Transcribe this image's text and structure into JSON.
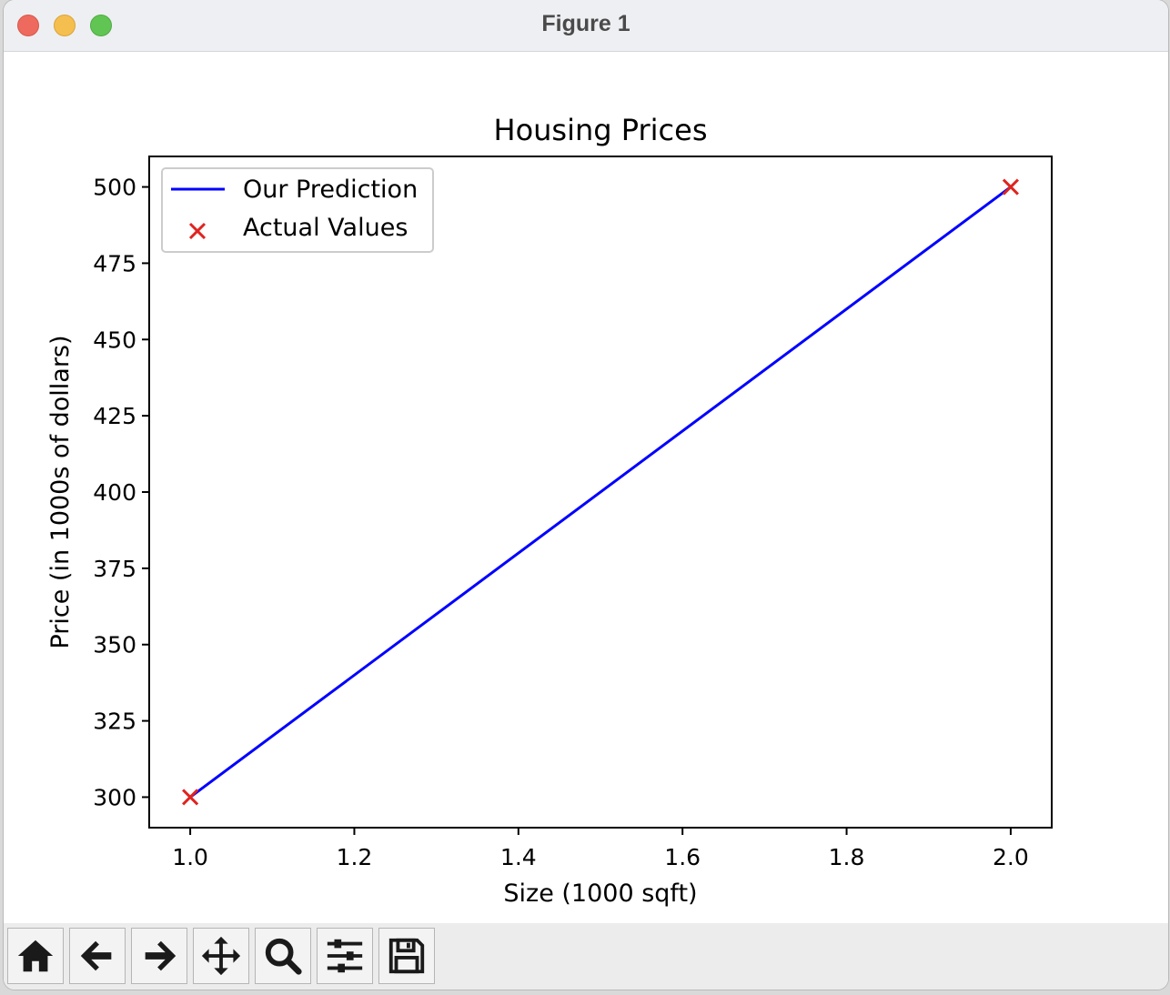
{
  "window": {
    "title": "Figure 1"
  },
  "toolbar": {
    "buttons": [
      {
        "name": "home-button",
        "icon": "home-icon"
      },
      {
        "name": "back-button",
        "icon": "arrow-left-icon"
      },
      {
        "name": "forward-button",
        "icon": "arrow-right-icon"
      },
      {
        "name": "pan-button",
        "icon": "move-icon"
      },
      {
        "name": "zoom-button",
        "icon": "magnifier-icon"
      },
      {
        "name": "configure-subplots-button",
        "icon": "sliders-icon"
      },
      {
        "name": "save-button",
        "icon": "floppy-disk-icon"
      }
    ]
  },
  "chart_data": {
    "type": "line",
    "title": "Housing Prices",
    "xlabel": "Size (1000 sqft)",
    "ylabel": "Price (in 1000s of dollars)",
    "xlim": [
      0.95,
      2.05
    ],
    "ylim": [
      290,
      510
    ],
    "x_ticks": [
      "1.0",
      "1.2",
      "1.4",
      "1.6",
      "1.8",
      "2.0"
    ],
    "y_ticks": [
      "300",
      "325",
      "350",
      "375",
      "400",
      "425",
      "450",
      "475",
      "500"
    ],
    "grid": false,
    "legend": "upper-left",
    "series": [
      {
        "name": "Our Prediction",
        "kind": "line",
        "color": "#0000ff",
        "x": [
          1.0,
          2.0
        ],
        "y": [
          300,
          500
        ]
      },
      {
        "name": "Actual Values",
        "kind": "scatter",
        "marker": "x",
        "color": "#e0241f",
        "x": [
          1.0,
          2.0
        ],
        "y": [
          300,
          500
        ]
      }
    ]
  }
}
